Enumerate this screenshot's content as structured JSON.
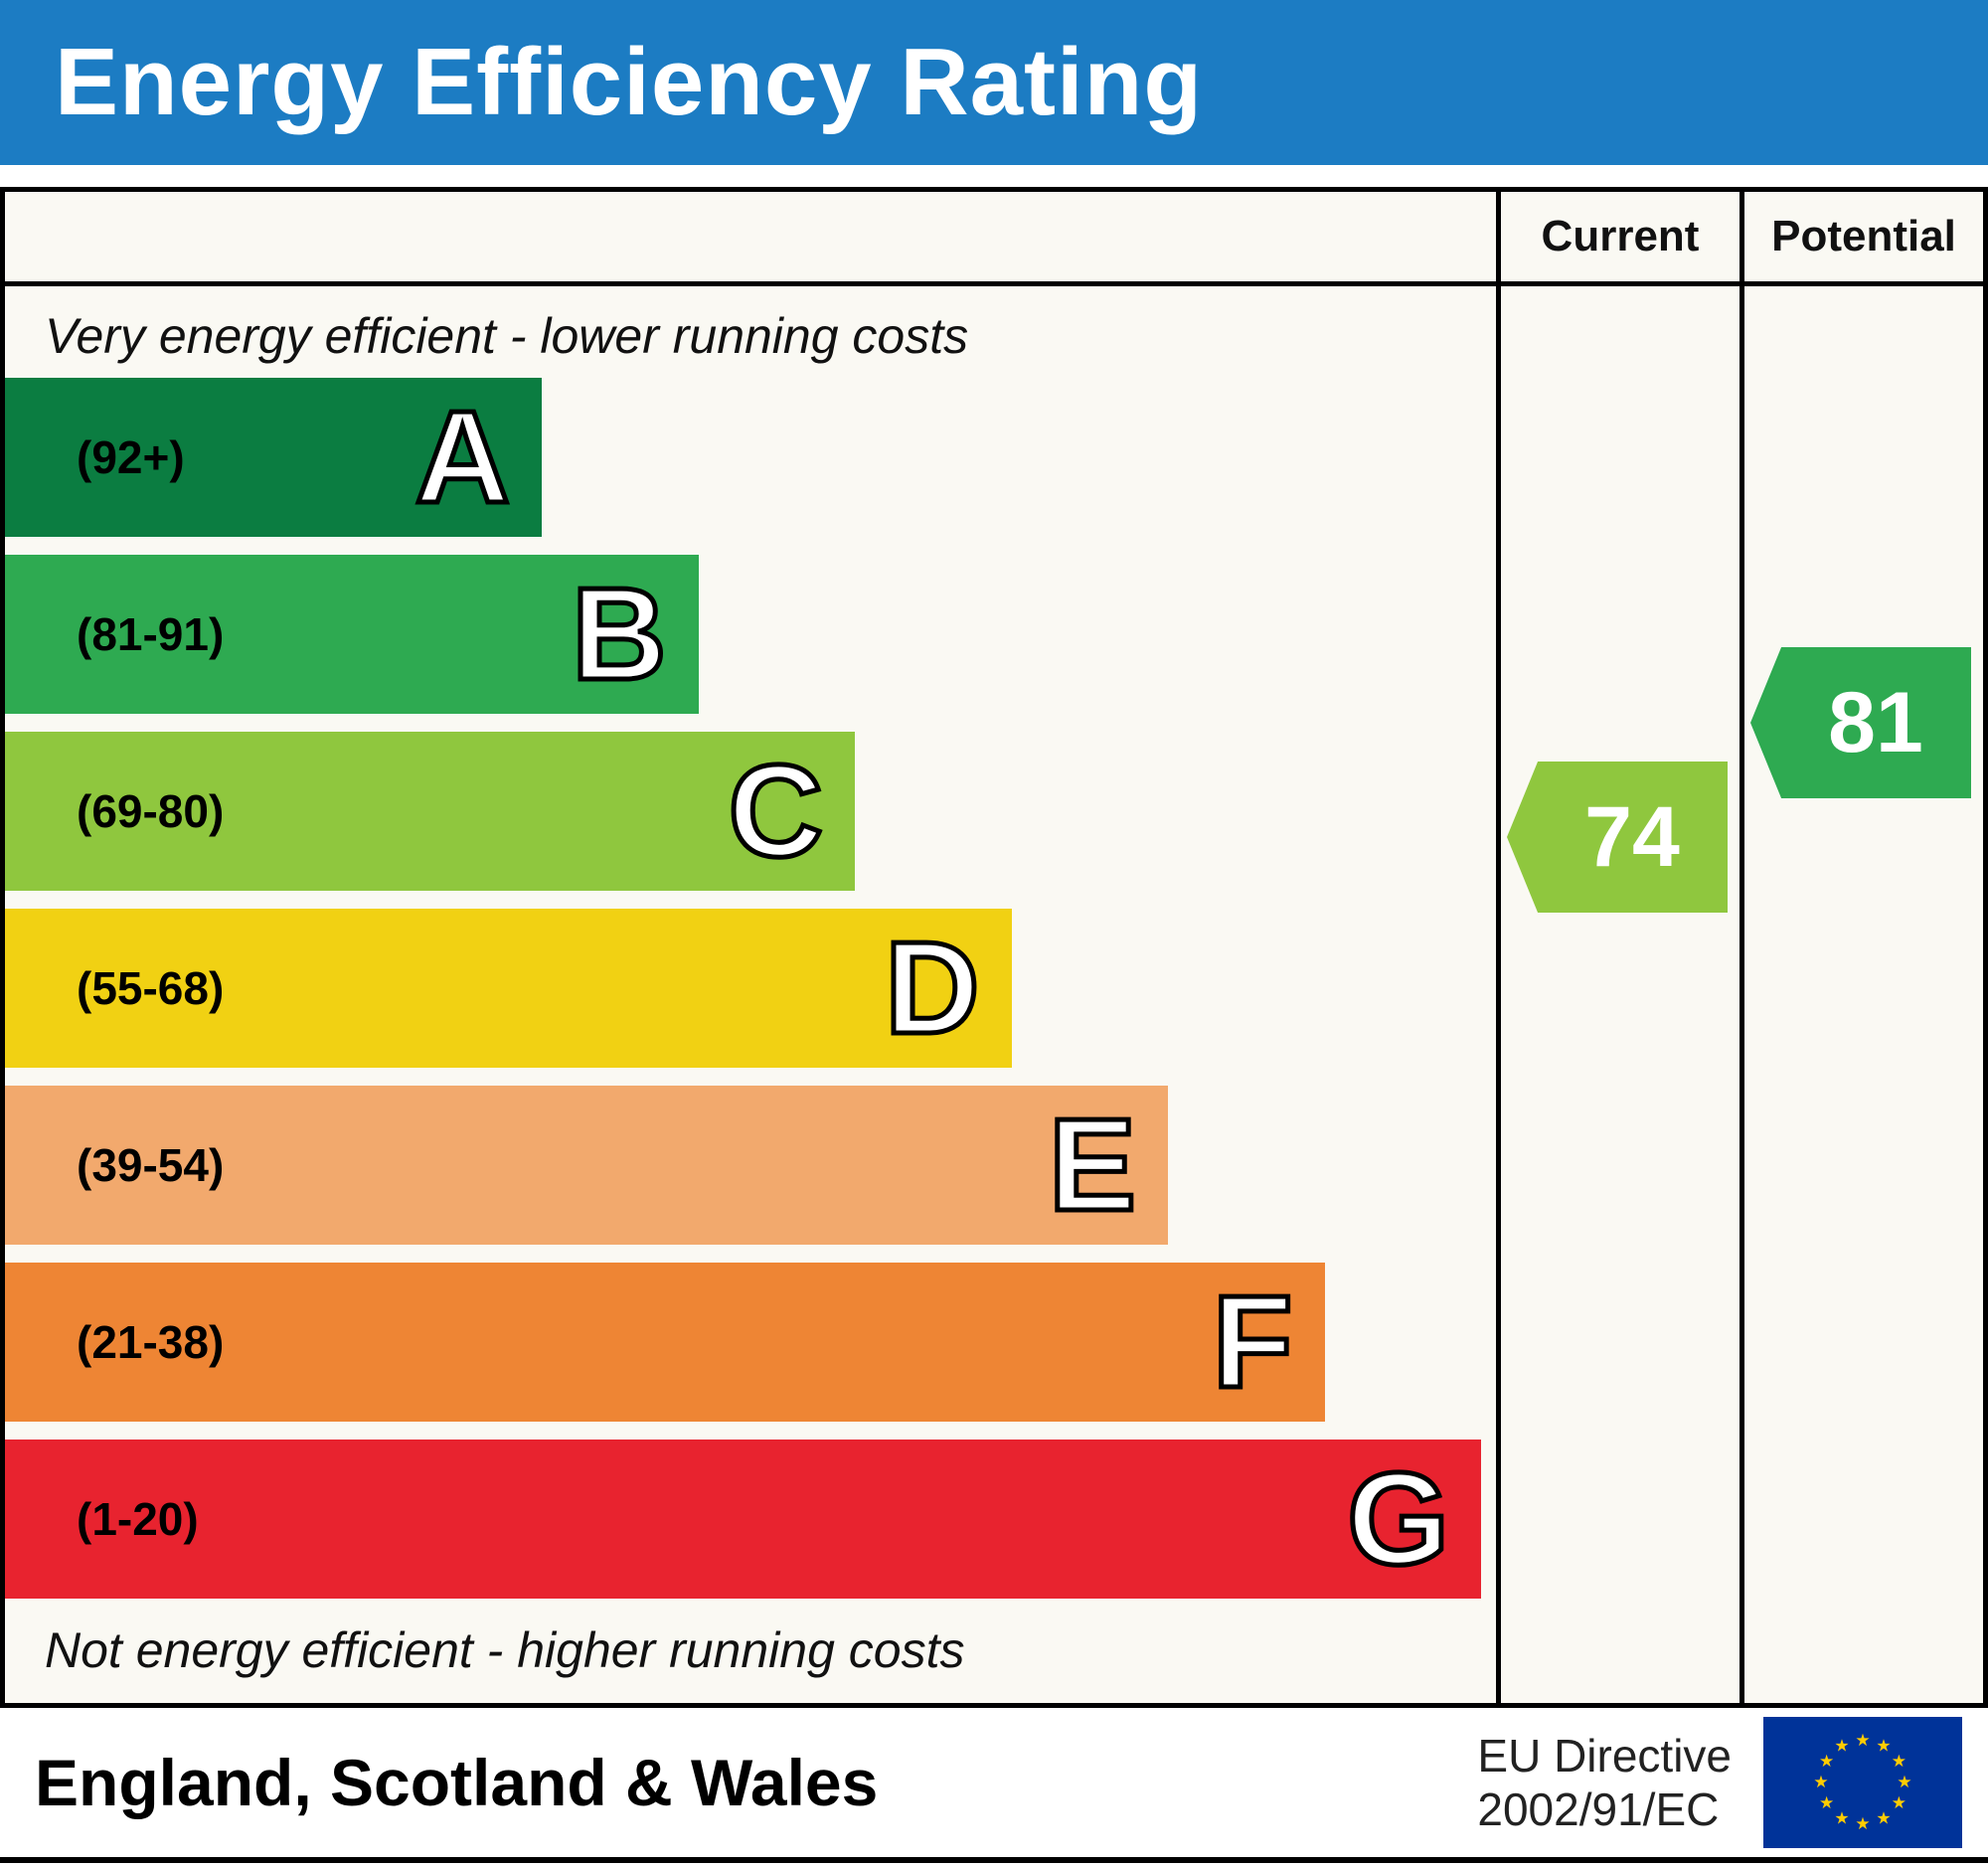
{
  "title": "Energy Efficiency Rating",
  "chart_data": {
    "type": "bar",
    "title": "Energy Efficiency Rating",
    "columns": {
      "current_label": "Current",
      "potential_label": "Potential"
    },
    "top_caption": "Very energy efficient - lower running costs",
    "bottom_caption": "Not energy efficient - higher running costs",
    "bands": [
      {
        "letter": "A",
        "range_label": "(92+)",
        "color": "#0b7d41",
        "width_pct": 36
      },
      {
        "letter": "B",
        "range_label": "(81-91)",
        "color": "#2eaa51",
        "width_pct": 46.5
      },
      {
        "letter": "C",
        "range_label": "(69-80)",
        "color": "#8fc73e",
        "width_pct": 57
      },
      {
        "letter": "D",
        "range_label": "(55-68)",
        "color": "#f1d113",
        "width_pct": 67.5
      },
      {
        "letter": "E",
        "range_label": "(39-54)",
        "color": "#f2a96d",
        "width_pct": 78
      },
      {
        "letter": "F",
        "range_label": "(21-38)",
        "color": "#ee8534",
        "width_pct": 88.5
      },
      {
        "letter": "G",
        "range_label": "(1-20)",
        "color": "#e8232f",
        "width_pct": 99
      }
    ],
    "current": {
      "value": 74,
      "band": "C",
      "color": "#8fc73e"
    },
    "potential": {
      "value": 81,
      "band": "B",
      "color": "#2eaa51"
    }
  },
  "footer": {
    "region": "England, Scotland & Wales",
    "directive_line1": "EU Directive",
    "directive_line2": "2002/91/EC",
    "eu_flag": {
      "bg": "#003399",
      "star_color": "#ffcc00"
    }
  },
  "colors": {
    "header_bg": "#1c7cc3",
    "header_text": "#ffffff",
    "chart_bg": "#faf9f3",
    "border": "#000000"
  }
}
